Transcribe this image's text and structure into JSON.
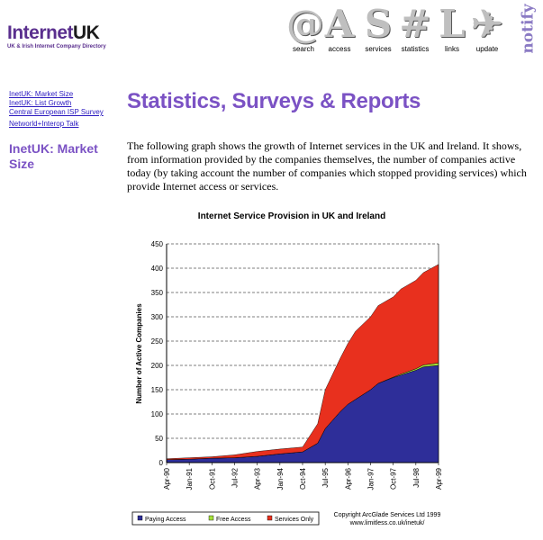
{
  "logo": {
    "part1": "Internet",
    "part2": "UK",
    "subtitle": "UK & Irish Internet Company Directory"
  },
  "nav": [
    {
      "glyph": "@",
      "label": "search",
      "icon": "at-sign-icon"
    },
    {
      "glyph": "A",
      "label": "access",
      "icon": "letter-a-icon"
    },
    {
      "glyph": "S",
      "label": "services",
      "icon": "letter-s-icon"
    },
    {
      "glyph": "#",
      "label": "statistics",
      "icon": "hash-icon"
    },
    {
      "glyph": "L",
      "label": "links",
      "icon": "letter-l-icon"
    },
    {
      "glyph": "✈",
      "label": "update",
      "icon": "paper-plane-icon"
    }
  ],
  "notify": "notify",
  "sidebar": {
    "links": [
      "InetUK: Market Size",
      "InetUK: List Growth",
      "Central European ISP Survey",
      "Networld+Interop Talk"
    ],
    "section_title": "InetUK: Market Size"
  },
  "main": {
    "heading": "Statistics, Surveys & Reports",
    "paragraph": "The following graph shows the growth of Internet services in the UK and Ireland. It shows, from information provided by the companies themselves, the number of companies active today (by taking account the number of companies which stopped providing services) which provide Internet access or services."
  },
  "chart_data": {
    "type": "area",
    "title": "Internet Service Provision in UK and Ireland",
    "ylabel": "Number of Active Companies",
    "ylim": [
      0,
      450
    ],
    "yticks": [
      0,
      50,
      100,
      150,
      200,
      250,
      300,
      350,
      400,
      450
    ],
    "grid": "horizontal dashed",
    "x_start": "Apr-90",
    "x_end": "Apr-99",
    "xticks": [
      "Apr-90",
      "Jan-91",
      "Oct-91",
      "Jul-92",
      "Apr-93",
      "Jan-94",
      "Oct-94",
      "Jul-95",
      "Apr-96",
      "Jan-97",
      "Oct-97",
      "Jul-98",
      "Apr-99"
    ],
    "x": [
      "Apr-90",
      "Jan-91",
      "Oct-91",
      "Jul-92",
      "Apr-93",
      "Jan-94",
      "Oct-94",
      "Apr-95",
      "Jul-95",
      "Jan-96",
      "Apr-96",
      "Jul-96",
      "Jan-97",
      "Apr-97",
      "Oct-97",
      "Jan-98",
      "Jul-98",
      "Oct-98",
      "Apr-99"
    ],
    "stacking": "stacked",
    "series": [
      {
        "name": "Paying Access",
        "color": "#2e2e99",
        "values": [
          6,
          7,
          9,
          10,
          13,
          18,
          22,
          40,
          70,
          105,
          120,
          130,
          150,
          163,
          175,
          180,
          190,
          197,
          200
        ]
      },
      {
        "name": "Free Access",
        "color": "#a5e23a",
        "values": [
          0,
          0,
          0,
          0,
          0,
          0,
          0,
          0,
          0,
          0,
          0,
          0,
          0,
          0,
          1,
          2,
          3,
          4,
          5
        ]
      },
      {
        "name": "Services Only",
        "color": "#e8301e",
        "values": [
          2,
          3,
          3,
          6,
          10,
          10,
          10,
          40,
          80,
          110,
          125,
          140,
          150,
          160,
          165,
          175,
          182,
          190,
          203
        ]
      }
    ],
    "legend_position": "bottom",
    "copyright": [
      "Copyright ArcGlade Services Ltd 1999",
      "www.limitless.co.uk/inetuk/"
    ]
  }
}
